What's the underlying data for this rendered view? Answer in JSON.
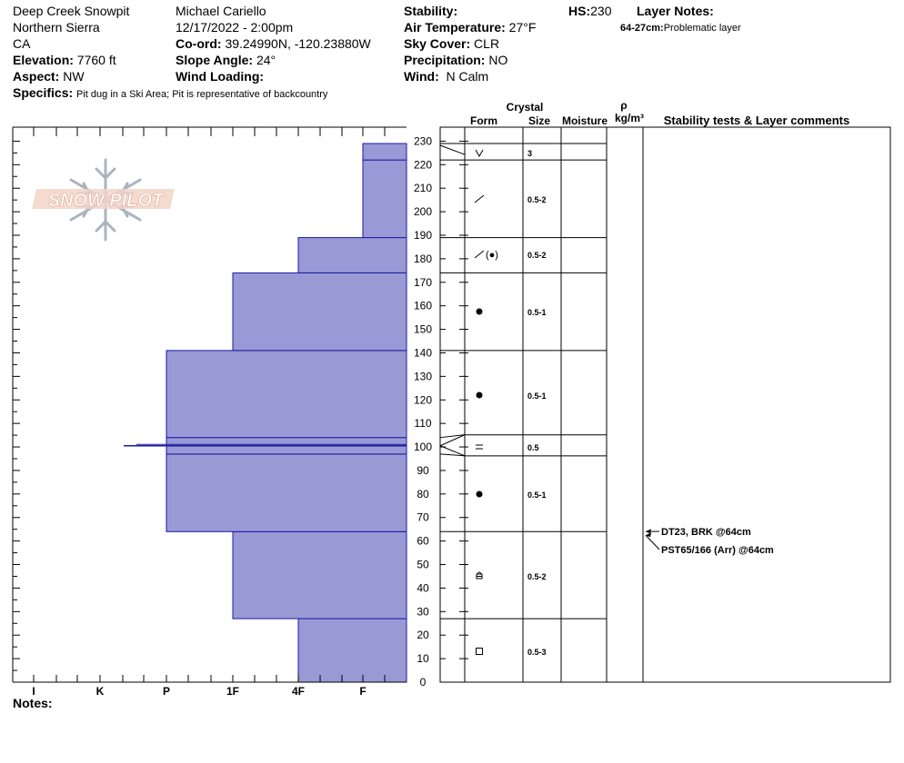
{
  "header": {
    "pit_name": "Deep Creek Snowpit",
    "range": "Northern Sierra",
    "state": "CA",
    "elevation_label": "Elevation:",
    "elevation_value": "7760 ft",
    "aspect_label": "Aspect:",
    "aspect_value": "NW",
    "observer": "Michael Cariello",
    "datetime": "12/17/2022 - 2:00pm",
    "coord_label": "Co-ord:",
    "coord_value": "39.24990N, -120.23880W",
    "slope_label": "Slope Angle:",
    "slope_value": "24°",
    "wind_loading_label": "Wind Loading:",
    "wind_loading_value": "",
    "stability_label": "Stability:",
    "stability_value": "",
    "air_temp_label": "Air Temperature:",
    "air_temp_value": "27°F",
    "sky_label": "Sky Cover:",
    "sky_value": "CLR",
    "precip_label": "Precipitation:",
    "precip_value": "NO",
    "wind_label": "Wind:",
    "wind_value": "N Calm",
    "hs_label": "HS:",
    "hs_value": "230",
    "layer_notes_label": "Layer Notes:",
    "layer_note_range": "64-27cm:",
    "layer_note_text": "Problematic layer",
    "specifics_label": "Specifics:",
    "specifics_value": "Pit dug in a Ski Area; Pit is representative of backcountry",
    "notes_label": "Notes:"
  },
  "logo": {
    "text": "SNOW PILOT"
  },
  "columns": {
    "crystal": "Crystal",
    "form": "Form",
    "size": "Size",
    "moisture": "Moisture",
    "rho": "ρ",
    "density_unit": "kg/m³",
    "stability": "Stability tests & Layer comments"
  },
  "colors": {
    "hardness_fill": "#9999d6",
    "hardness_stroke": "#1a1aa0",
    "grid": "#000000"
  },
  "chart_data": {
    "type": "bar",
    "ylim": [
      0,
      230
    ],
    "yticks": [
      0,
      10,
      20,
      30,
      40,
      50,
      60,
      70,
      80,
      90,
      100,
      110,
      120,
      130,
      140,
      150,
      160,
      170,
      180,
      190,
      200,
      210,
      220,
      230
    ],
    "hardness_scale": [
      "I",
      "K",
      "P",
      "1F",
      "4F",
      "F"
    ],
    "hardness_scale_order_left_to_right": [
      "I",
      "K",
      "P",
      "1F",
      "4F",
      "F"
    ],
    "layers": [
      {
        "bottom": 0,
        "top": 27,
        "hardness": "4F",
        "form": "square",
        "size": "0.5-3"
      },
      {
        "bottom": 27,
        "top": 64,
        "hardness": "1F",
        "form": "facet-mixed",
        "size": "0.5-2"
      },
      {
        "bottom": 64,
        "top": 97,
        "hardness": "P",
        "form": "rounded",
        "size": "0.5-1"
      },
      {
        "bottom": 97,
        "top": 100.5,
        "hardness": "P",
        "form": "crust",
        "size": "0.5"
      },
      {
        "bottom": 100.5,
        "top": 104,
        "hardness": "P",
        "form": "",
        "size": ""
      },
      {
        "bottom": 104,
        "top": 141,
        "hardness": "P",
        "form": "rounded",
        "size": "0.5-1"
      },
      {
        "bottom": 141,
        "top": 174,
        "hardness": "1F",
        "form": "rounded",
        "size": "0.5-1"
      },
      {
        "bottom": 174,
        "top": 189,
        "hardness": "4F",
        "form": "decomposed-rounded",
        "size": "0.5-2"
      },
      {
        "bottom": 189,
        "top": 222,
        "hardness": "F",
        "form": "decomposed",
        "size": "0.5-2"
      },
      {
        "bottom": 222,
        "top": 229,
        "hardness": "F",
        "form": "surface-hoar",
        "size": "3"
      }
    ],
    "thin_layer": {
      "height": 100.5,
      "hardness_position": 1.35
    },
    "stability_tests": [
      {
        "text": "DT23, BRK @64cm",
        "depth": 64
      },
      {
        "text": "PST65/166 (Arr) @64cm",
        "depth": 64
      }
    ]
  }
}
